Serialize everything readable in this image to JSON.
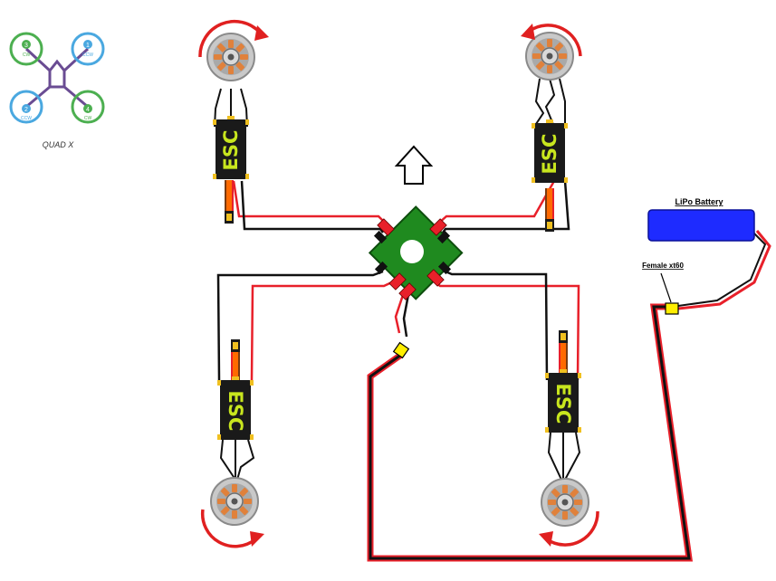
{
  "legend": {
    "caption": "QUAD X",
    "motors": [
      {
        "number": "3",
        "dir": "CW"
      },
      {
        "number": "1",
        "dir": "CCW"
      },
      {
        "number": "2",
        "dir": "CCW"
      },
      {
        "number": "4",
        "dir": "CW"
      }
    ]
  },
  "esc_label": "ESC",
  "battery": {
    "label": "LiPo Battery"
  },
  "connector": {
    "label": "Female xt60"
  },
  "colors": {
    "wire_red": "#e8202a",
    "wire_black": "#111111",
    "pdb_green": "#1f8a1f",
    "esc_body": "#1a1a1a",
    "esc_text": "#c8e61e",
    "battery_blue": "#1e2bff",
    "connector_yellow": "#ffee00",
    "legend_green": "#4caf50",
    "legend_blue": "#4aa8e0",
    "legend_frame": "#6a4c93",
    "rotation_arrow": "#e02020"
  }
}
